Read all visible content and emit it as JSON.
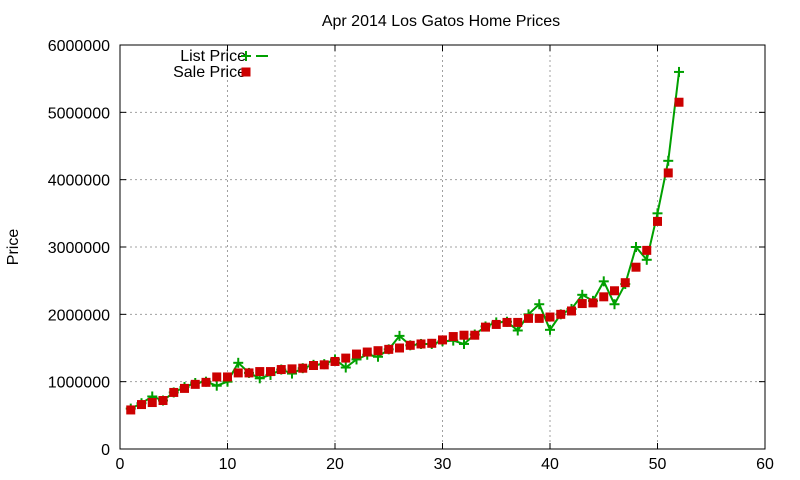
{
  "chart_data": {
    "type": "line",
    "title": "Apr 2014 Los Gatos Home Prices",
    "xlabel": "",
    "ylabel": "Price",
    "xlim": [
      0,
      60
    ],
    "ylim": [
      0,
      6000000
    ],
    "x_ticks": [
      0,
      10,
      20,
      30,
      40,
      50,
      60
    ],
    "y_ticks": [
      0,
      1000000,
      2000000,
      3000000,
      4000000,
      5000000,
      6000000
    ],
    "x_tick_labels": [
      "0",
      "10",
      "20",
      "30",
      "40",
      "50",
      "60"
    ],
    "y_tick_labels": [
      "0",
      "1000000",
      "2000000",
      "3000000",
      "4000000",
      "5000000",
      "6000000"
    ],
    "grid": true,
    "legend_position": "top-left",
    "x": [
      1,
      2,
      3,
      4,
      5,
      6,
      7,
      8,
      9,
      10,
      11,
      12,
      13,
      14,
      15,
      16,
      17,
      18,
      19,
      20,
      21,
      22,
      23,
      24,
      25,
      26,
      27,
      28,
      29,
      30,
      31,
      32,
      33,
      34,
      35,
      36,
      37,
      38,
      39,
      40,
      41,
      42,
      43,
      44,
      45,
      46,
      47,
      48,
      49,
      50,
      51,
      52
    ],
    "series": [
      {
        "name": "List Price",
        "style": "linespoints",
        "color": "#00a000",
        "marker": "plus",
        "values": [
          600000,
          680000,
          780000,
          720000,
          840000,
          920000,
          980000,
          1000000,
          940000,
          1000000,
          1280000,
          1130000,
          1050000,
          1100000,
          1180000,
          1120000,
          1200000,
          1250000,
          1260000,
          1330000,
          1210000,
          1330000,
          1400000,
          1370000,
          1480000,
          1680000,
          1540000,
          1560000,
          1560000,
          1600000,
          1610000,
          1560000,
          1700000,
          1820000,
          1880000,
          1890000,
          1760000,
          2000000,
          2150000,
          1770000,
          2000000,
          2080000,
          2290000,
          2200000,
          2490000,
          2150000,
          2450000,
          3000000,
          2810000,
          3500000,
          4280000,
          5600000
        ]
      },
      {
        "name": "Sale Price",
        "style": "points",
        "color": "#cc0000",
        "marker": "square",
        "values": [
          580000,
          660000,
          690000,
          720000,
          840000,
          900000,
          960000,
          990000,
          1070000,
          1070000,
          1130000,
          1130000,
          1150000,
          1150000,
          1180000,
          1190000,
          1200000,
          1240000,
          1250000,
          1300000,
          1350000,
          1410000,
          1440000,
          1460000,
          1480000,
          1500000,
          1540000,
          1560000,
          1570000,
          1620000,
          1670000,
          1690000,
          1690000,
          1810000,
          1850000,
          1880000,
          1880000,
          1940000,
          1940000,
          1960000,
          2000000,
          2050000,
          2160000,
          2170000,
          2260000,
          2350000,
          2470000,
          2700000,
          2950000,
          3380000,
          4100000,
          5150000
        ]
      }
    ]
  }
}
